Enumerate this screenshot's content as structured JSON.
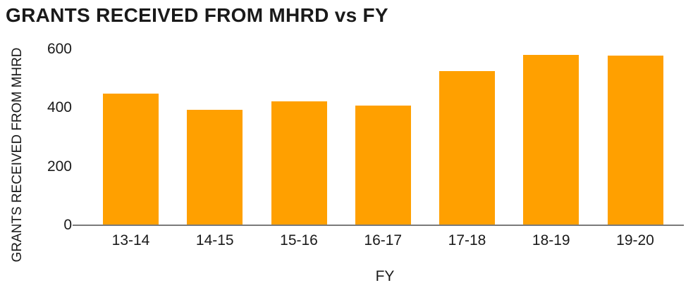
{
  "chart_data": {
    "type": "bar",
    "title": "GRANTS RECEIVED FROM MHRD vs FY",
    "xlabel": "FY",
    "ylabel": "GRANTS RECEIVED FROM MHRD",
    "categories": [
      "13-14",
      "14-15",
      "15-16",
      "16-17",
      "17-18",
      "18-19",
      "19-20"
    ],
    "values": [
      448,
      394,
      423,
      408,
      526,
      582,
      578
    ],
    "ylim": [
      0,
      600
    ],
    "yticks": [
      0,
      200,
      400,
      600
    ],
    "grid": false,
    "legend": false,
    "bar_color": "#FFA000",
    "axis_line_color": "#7a7a7a",
    "text_color": "#1a1a1a",
    "background_color": "#ffffff"
  }
}
